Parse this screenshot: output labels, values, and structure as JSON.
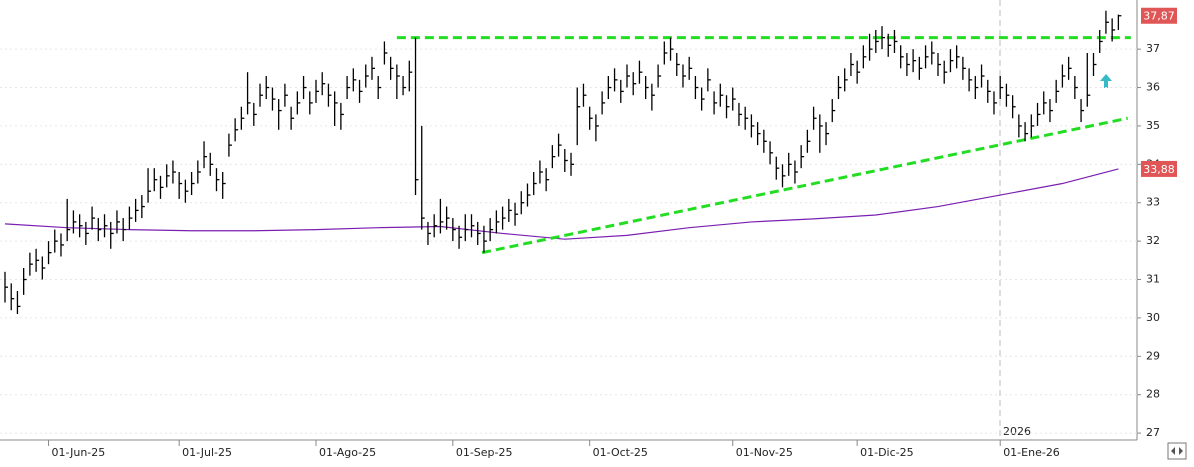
{
  "chart_data": {
    "type": "ohlc",
    "categories": [
      null,
      null,
      null,
      null,
      null,
      null,
      null,
      "01-Jun-25",
      null,
      null,
      null,
      null,
      null,
      null,
      null,
      null,
      null,
      null,
      null,
      null,
      null,
      null,
      null,
      null,
      null,
      null,
      null,
      null,
      "01-Jul-25",
      null,
      null,
      null,
      null,
      null,
      null,
      null,
      null,
      null,
      null,
      null,
      null,
      null,
      null,
      null,
      null,
      null,
      null,
      null,
      null,
      null,
      "01-Ago-25",
      null,
      null,
      null,
      null,
      null,
      null,
      null,
      null,
      null,
      null,
      null,
      null,
      null,
      null,
      null,
      null,
      null,
      null,
      null,
      null,
      null,
      "01-Sep-25",
      null,
      null,
      null,
      null,
      null,
      null,
      null,
      null,
      null,
      null,
      null,
      null,
      null,
      null,
      null,
      null,
      null,
      null,
      null,
      null,
      null,
      "01-Oct-25",
      null,
      null,
      null,
      null,
      null,
      null,
      null,
      null,
      null,
      null,
      null,
      null,
      null,
      null,
      null,
      null,
      null,
      null,
      null,
      null,
      null,
      null,
      "01-Nov-25",
      null,
      null,
      null,
      null,
      null,
      null,
      null,
      null,
      null,
      null,
      null,
      null,
      null,
      null,
      null,
      null,
      null,
      null,
      null,
      "01-Dic-25",
      null,
      null,
      null,
      null,
      null,
      null,
      null,
      null,
      null,
      null,
      null,
      null,
      null,
      null,
      null,
      null,
      null,
      null,
      null,
      null,
      null,
      null,
      "01-Ene-26",
      null,
      null,
      null,
      null,
      null,
      null,
      null,
      null,
      null,
      null,
      null,
      null,
      null,
      null,
      null,
      null,
      null,
      null,
      null
    ],
    "close": [
      30.8,
      30.5,
      30.3,
      31.0,
      31.4,
      31.5,
      31.3,
      31.7,
      32.0,
      31.9,
      32.3,
      32.5,
      32.4,
      32.2,
      32.6,
      32.3,
      32.4,
      32.2,
      32.5,
      32.3,
      32.6,
      32.8,
      32.9,
      33.3,
      33.6,
      33.4,
      33.7,
      33.8,
      33.5,
      33.3,
      33.5,
      33.8,
      34.2,
      34.0,
      33.6,
      33.5,
      34.5,
      34.9,
      35.2,
      35.6,
      35.3,
      35.8,
      36.0,
      35.7,
      35.4,
      35.8,
      35.2,
      35.6,
      36.0,
      35.6,
      35.9,
      36.1,
      35.8,
      35.6,
      35.3,
      36.0,
      36.2,
      35.9,
      36.3,
      36.5,
      36.0,
      36.9,
      36.5,
      36.3,
      36.0,
      36.4,
      33.6,
      32.6,
      32.2,
      32.4,
      32.5,
      32.6,
      32.3,
      32.1,
      32.3,
      32.4,
      32.2,
      32.0,
      32.3,
      32.5,
      32.6,
      32.8,
      32.7,
      33.0,
      33.2,
      33.5,
      33.8,
      33.6,
      34.2,
      34.5,
      34.1,
      34.0,
      35.5,
      35.8,
      35.2,
      35.0,
      35.6,
      36.0,
      36.2,
      35.9,
      36.3,
      36.1,
      36.4,
      36.0,
      35.8,
      36.3,
      36.9,
      37.0,
      36.6,
      36.3,
      36.5,
      36.0,
      35.7,
      36.2,
      35.6,
      35.8,
      35.5,
      35.7,
      35.3,
      35.2,
      35.0,
      34.8,
      34.6,
      34.3,
      33.9,
      33.7,
      34.0,
      33.8,
      34.2,
      34.6,
      35.2,
      35.0,
      34.8,
      35.4,
      36.0,
      36.2,
      36.6,
      36.4,
      36.8,
      37.0,
      37.2,
      37.3,
      37.1,
      37.2,
      36.8,
      36.6,
      36.7,
      36.5,
      36.8,
      36.9,
      36.6,
      36.4,
      36.7,
      36.8,
      36.5,
      36.2,
      36.0,
      36.3,
      35.9,
      35.6,
      36.0,
      35.8,
      35.5,
      35.0,
      34.8,
      35.0,
      35.3,
      35.6,
      35.4,
      35.9,
      36.3,
      36.5,
      36.0,
      35.4,
      35.8,
      36.6,
      37.2,
      37.7,
      37.5,
      37.87
    ],
    "high": [
      31.2,
      30.9,
      30.7,
      31.3,
      31.7,
      31.8,
      31.6,
      32.0,
      32.3,
      32.2,
      33.1,
      32.8,
      32.7,
      32.5,
      32.9,
      32.6,
      32.7,
      32.5,
      32.8,
      32.6,
      32.9,
      33.1,
      33.2,
      33.9,
      33.9,
      33.7,
      34.0,
      34.1,
      33.8,
      33.6,
      33.8,
      34.1,
      34.6,
      34.3,
      33.9,
      33.8,
      34.8,
      35.2,
      35.5,
      36.4,
      35.6,
      36.1,
      36.3,
      36.0,
      35.7,
      36.1,
      35.5,
      35.9,
      36.3,
      35.9,
      36.2,
      36.4,
      36.1,
      35.9,
      35.6,
      36.3,
      36.5,
      36.2,
      36.6,
      36.8,
      36.3,
      37.2,
      36.8,
      36.6,
      36.3,
      36.7,
      37.3,
      35.0,
      32.5,
      32.7,
      33.1,
      32.9,
      32.6,
      32.4,
      32.7,
      32.7,
      32.5,
      32.4,
      32.6,
      32.8,
      32.9,
      33.1,
      33.0,
      33.3,
      33.5,
      33.8,
      34.1,
      33.9,
      34.5,
      34.8,
      34.4,
      34.3,
      36.0,
      36.1,
      35.5,
      35.3,
      35.9,
      36.3,
      36.5,
      36.2,
      36.6,
      36.4,
      36.7,
      36.3,
      36.1,
      36.6,
      37.2,
      37.3,
      36.9,
      36.6,
      36.8,
      36.3,
      36.0,
      36.5,
      35.9,
      36.1,
      35.8,
      36.0,
      35.6,
      35.5,
      35.3,
      35.1,
      34.9,
      34.6,
      34.2,
      34.0,
      34.3,
      34.1,
      34.5,
      34.9,
      35.5,
      35.3,
      35.1,
      35.7,
      36.3,
      36.5,
      36.9,
      36.7,
      37.1,
      37.4,
      37.5,
      37.6,
      37.4,
      37.5,
      37.1,
      36.9,
      37.0,
      36.8,
      37.1,
      37.2,
      36.9,
      36.7,
      37.0,
      37.1,
      36.8,
      36.5,
      36.3,
      36.6,
      36.2,
      35.9,
      36.3,
      36.1,
      35.8,
      35.3,
      35.1,
      35.3,
      35.6,
      35.9,
      35.7,
      36.2,
      36.6,
      36.8,
      36.3,
      35.7,
      36.9,
      36.9,
      37.5,
      38.0,
      37.8,
      37.9
    ],
    "low": [
      30.4,
      30.2,
      30.1,
      30.6,
      31.1,
      31.2,
      31.0,
      31.4,
      31.7,
      31.6,
      32.0,
      32.2,
      32.1,
      31.9,
      32.3,
      32.0,
      32.1,
      31.8,
      32.2,
      32.0,
      32.3,
      32.5,
      32.6,
      33.0,
      33.3,
      33.1,
      33.4,
      33.5,
      33.1,
      33.0,
      33.2,
      33.5,
      33.9,
      33.7,
      33.3,
      33.1,
      34.2,
      34.6,
      34.9,
      35.3,
      35.0,
      35.5,
      35.7,
      35.4,
      34.9,
      35.5,
      34.9,
      35.3,
      35.7,
      35.3,
      35.6,
      35.8,
      35.5,
      35.0,
      34.9,
      35.7,
      35.9,
      35.6,
      36.0,
      36.2,
      35.7,
      36.6,
      36.2,
      35.7,
      35.8,
      35.9,
      33.2,
      32.3,
      31.9,
      32.1,
      32.2,
      32.3,
      32.0,
      31.8,
      32.0,
      32.1,
      31.9,
      31.7,
      32.0,
      32.2,
      32.3,
      32.5,
      32.4,
      32.7,
      32.9,
      33.2,
      33.5,
      33.3,
      33.9,
      34.2,
      33.8,
      33.7,
      34.5,
      35.5,
      34.9,
      34.6,
      35.3,
      35.7,
      35.9,
      35.6,
      36.0,
      35.8,
      36.1,
      35.7,
      35.4,
      36.0,
      36.6,
      36.7,
      36.3,
      36.0,
      36.2,
      35.7,
      35.4,
      35.9,
      35.3,
      35.5,
      35.2,
      35.4,
      35.0,
      34.9,
      34.7,
      34.5,
      34.3,
      34.0,
      33.6,
      33.4,
      33.7,
      33.5,
      33.9,
      34.3,
      34.9,
      34.3,
      34.5,
      35.1,
      35.7,
      35.9,
      36.3,
      36.1,
      36.5,
      36.7,
      36.9,
      37.0,
      36.8,
      36.9,
      36.5,
      36.3,
      36.4,
      36.2,
      36.5,
      36.6,
      36.3,
      36.1,
      36.4,
      36.5,
      36.2,
      35.9,
      35.7,
      36.0,
      35.6,
      35.3,
      35.7,
      35.5,
      35.2,
      34.7,
      34.6,
      34.7,
      35.0,
      35.3,
      35.1,
      35.6,
      36.0,
      36.2,
      35.7,
      35.1,
      35.5,
      36.3,
      36.9,
      37.4,
      37.2,
      37.5
    ],
    "bar_color": "#000000",
    "moving_average": {
      "color": "#7a1fb0",
      "x": [
        0,
        10,
        20,
        30,
        40,
        50,
        60,
        70,
        80,
        90,
        100,
        110,
        120,
        130,
        140,
        150,
        160,
        170,
        179
      ],
      "values": [
        32.45,
        32.35,
        32.3,
        32.27,
        32.27,
        32.3,
        32.35,
        32.38,
        32.2,
        32.05,
        32.15,
        32.35,
        32.5,
        32.58,
        32.68,
        32.9,
        33.2,
        33.5,
        33.88
      ]
    },
    "trend_lines": [
      {
        "color": "#22dd22",
        "x": [
          63,
          181
        ],
        "y": [
          37.3,
          37.3
        ]
      },
      {
        "color": "#22dd22",
        "x": [
          76.7,
          180.5
        ],
        "y": [
          31.7,
          35.2
        ]
      }
    ],
    "price_labels": [
      {
        "value": 37.87,
        "label": "37,87",
        "color": "#e05555"
      },
      {
        "value": 33.88,
        "label": "33,88",
        "color": "#e05555"
      }
    ],
    "year_label": "2026",
    "ylim": [
      26.82,
      38.28
    ],
    "yticks": [
      27,
      28,
      29,
      30,
      31,
      32,
      33,
      34,
      35,
      36,
      37
    ],
    "grid": true
  }
}
